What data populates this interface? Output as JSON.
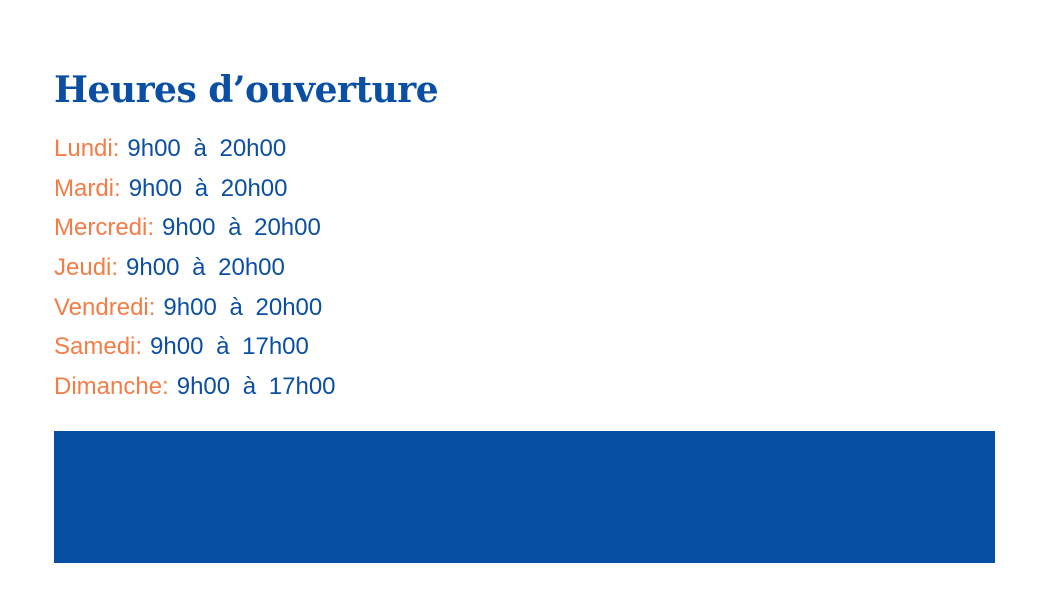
{
  "title": "Heures d’ouverture",
  "schedule": [
    {
      "day": "Lundi:",
      "hours": "9h00 à 20h00"
    },
    {
      "day": "Mardi:",
      "hours": "9h00 à 20h00"
    },
    {
      "day": "Mercredi:",
      "hours": "9h00 à 20h00"
    },
    {
      "day": "Jeudi:",
      "hours": "9h00 à 20h00"
    },
    {
      "day": "Vendredi:",
      "hours": "9h00 à 20h00"
    },
    {
      "day": "Samedi:",
      "hours": "9h00 à 17h00"
    },
    {
      "day": "Dimanche:",
      "hours": "9h00 à 17h00"
    }
  ],
  "colors": {
    "primary": "#0a4fa3",
    "accent": "#f47c46",
    "band": "#074fa2"
  }
}
